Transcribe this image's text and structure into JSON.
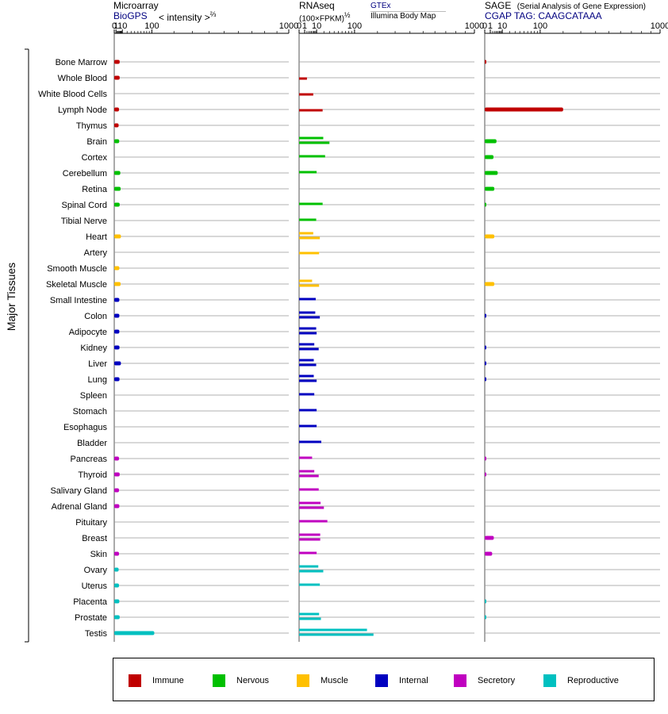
{
  "panels": [
    {
      "id": "microarray",
      "title": "Microarray",
      "subtitle": "BioGPS",
      "subtitle2": "< intensity >",
      "exponent": "⅔"
    },
    {
      "id": "rnaseq",
      "title": "RNAseq",
      "subtitle": "(100×FPKM)",
      "exponent": "½",
      "source1": "GTEx",
      "source2": "Illumina Body Map"
    },
    {
      "id": "sage",
      "title": "SAGE",
      "title_note": "(Serial Analysis of Gene Expression)",
      "subtitle": "CGAP TAG: CAAGCATAAA"
    }
  ],
  "y_axis_label": "Major Tissues",
  "legend": [
    {
      "label": "Immune",
      "color": "#c00000"
    },
    {
      "label": "Nervous",
      "color": "#00c000"
    },
    {
      "label": "Muscle",
      "color": "#ffc000"
    },
    {
      "label": "Internal",
      "color": "#0000c0"
    },
    {
      "label": "Secretory",
      "color": "#c000c0"
    },
    {
      "label": "Reproductive",
      "color": "#00c0c0"
    }
  ],
  "chart_data": {
    "type": "bar",
    "orientation": "horizontal",
    "x_scale": "power",
    "x_ticks": [
      0,
      1,
      10,
      100,
      1000
    ],
    "xlim": [
      0,
      1000
    ],
    "categories": [
      "Bone Marrow",
      "Whole Blood",
      "White Blood Cells",
      "Lymph Node",
      "Thymus",
      "Brain",
      "Cortex",
      "Cerebellum",
      "Retina",
      "Spinal Cord",
      "Tibial Nerve",
      "Heart",
      "Artery",
      "Smooth Muscle",
      "Skeletal Muscle",
      "Small Intestine",
      "Colon",
      "Adipocyte",
      "Kidney",
      "Liver",
      "Lung",
      "Spleen",
      "Stomach",
      "Esophagus",
      "Bladder",
      "Pancreas",
      "Thyroid",
      "Salivary Gland",
      "Adrenal Gland",
      "Pituitary",
      "Breast",
      "Skin",
      "Ovary",
      "Uterus",
      "Placenta",
      "Prostate",
      "Testis"
    ],
    "groups": [
      "Immune",
      "Immune",
      "Immune",
      "Immune",
      "Immune",
      "Nervous",
      "Nervous",
      "Nervous",
      "Nervous",
      "Nervous",
      "Nervous",
      "Muscle",
      "Muscle",
      "Muscle",
      "Muscle",
      "Internal",
      "Internal",
      "Internal",
      "Internal",
      "Internal",
      "Internal",
      "Internal",
      "Internal",
      "Internal",
      "Internal",
      "Secretory",
      "Secretory",
      "Secretory",
      "Secretory",
      "Secretory",
      "Secretory",
      "Secretory",
      "Reproductive",
      "Reproductive",
      "Reproductive",
      "Reproductive",
      "Reproductive"
    ],
    "series": [
      {
        "name": "Microarray",
        "values": [
          5.5,
          5.5,
          null,
          4.5,
          4.0,
          4.8,
          null,
          6.5,
          7.0,
          5.5,
          null,
          7.5,
          null,
          5.0,
          7.0,
          5.0,
          5.0,
          5.0,
          5.2,
          7.5,
          5.2,
          null,
          null,
          null,
          null,
          4.5,
          5.5,
          4.5,
          5.0,
          null,
          null,
          4.5,
          4.0,
          4.5,
          5.0,
          5.5,
          110
        ]
      },
      {
        "name": "GTEx",
        "values": [
          null,
          null,
          null,
          null,
          null,
          null,
          null,
          null,
          null,
          null,
          null,
          null,
          null,
          null,
          null,
          null,
          null,
          null,
          null,
          null,
          null,
          null,
          null,
          null,
          null,
          null,
          null,
          null,
          null,
          null,
          null,
          null,
          null,
          null,
          null,
          null,
          null
        ]
      },
      {
        "name": "Illumina Body Map",
        "values": [
          null,
          null,
          null,
          null,
          null,
          null,
          null,
          null,
          null,
          null,
          null,
          null,
          null,
          null,
          null,
          null,
          null,
          null,
          null,
          null,
          null,
          null,
          null,
          null,
          null,
          null,
          null,
          null,
          null,
          null,
          null,
          null,
          null,
          null,
          null,
          null,
          null
        ]
      },
      {
        "name": "SAGE",
        "values": [
          0.01,
          null,
          null,
          200,
          null,
          4.5,
          2.5,
          5.5,
          3.0,
          0.01,
          null,
          3.0,
          null,
          null,
          3.0,
          null,
          0.01,
          null,
          0.01,
          0.01,
          0.01,
          null,
          null,
          null,
          null,
          0.01,
          0.01,
          null,
          null,
          null,
          2.7,
          1.8,
          null,
          null,
          0.01,
          0.01,
          null
        ]
      }
    ],
    "rnaseq_bars": [
      [],
      [
        [
          5,
          2
        ]
      ],
      [
        [
          5,
          6.5
        ]
      ],
      [
        [
          5,
          18
        ]
      ],
      [],
      [
        [
          1,
          19
        ],
        [
          5,
          30
        ]
      ],
      [
        [
          1,
          22
        ]
      ],
      [
        [
          1,
          10
        ]
      ],
      [],
      [
        [
          1,
          18
        ]
      ],
      [
        [
          1,
          9.5
        ]
      ],
      [
        [
          1,
          6.5
        ],
        [
          5,
          14
        ]
      ],
      [
        [
          5,
          13
        ]
      ],
      [],
      [
        [
          1,
          5.5
        ],
        [
          5,
          13
        ]
      ],
      [
        [
          1,
          9
        ]
      ],
      [
        [
          1,
          8.5
        ],
        [
          5,
          14
        ]
      ],
      [
        [
          1,
          9.5
        ],
        [
          5,
          10
        ]
      ],
      [
        [
          1,
          7.5
        ],
        [
          5,
          12.5
        ]
      ],
      [
        [
          1,
          7
        ],
        [
          5,
          9.5
        ]
      ],
      [
        [
          1,
          7
        ],
        [
          5,
          10
        ]
      ],
      [
        [
          1,
          7.5
        ]
      ],
      [
        [
          1,
          10
        ]
      ],
      [
        [
          1,
          10
        ]
      ],
      [
        [
          1,
          16
        ]
      ],
      [
        [
          1,
          5.5
        ]
      ],
      [
        [
          1,
          7.5
        ],
        [
          5,
          12.5
        ]
      ],
      [
        [
          1,
          12.5
        ]
      ],
      [
        [
          1,
          15
        ],
        [
          5,
          20
        ]
      ],
      [
        [
          1,
          26
        ]
      ],
      [
        [
          1,
          14.5
        ],
        [
          5,
          14.5
        ]
      ],
      [
        [
          1,
          10
        ]
      ],
      [
        [
          1,
          12
        ],
        [
          5,
          19
        ]
      ],
      [
        [
          1,
          14
        ]
      ],
      [],
      [
        [
          1,
          13
        ],
        [
          5,
          15.5
        ]
      ],
      [
        [
          1,
          150
        ],
        [
          5,
          180
        ]
      ]
    ]
  }
}
